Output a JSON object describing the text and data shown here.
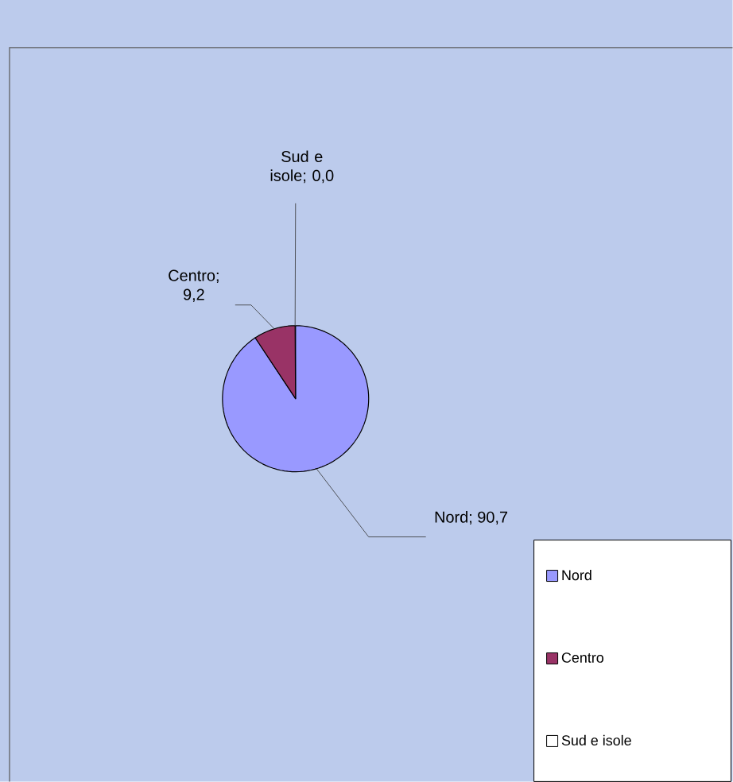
{
  "chart_data": {
    "type": "pie",
    "categories": [
      "Nord",
      "Centro",
      "Sud e isole"
    ],
    "values": [
      90.7,
      9.2,
      0.0
    ],
    "value_labels": [
      "Nord; 90,7",
      "Centro; 9,2",
      "Sud e isole; 0,0"
    ],
    "colors": [
      "#9999ff",
      "#993366",
      "#ffffff"
    ],
    "legend": "bottom right"
  }
}
